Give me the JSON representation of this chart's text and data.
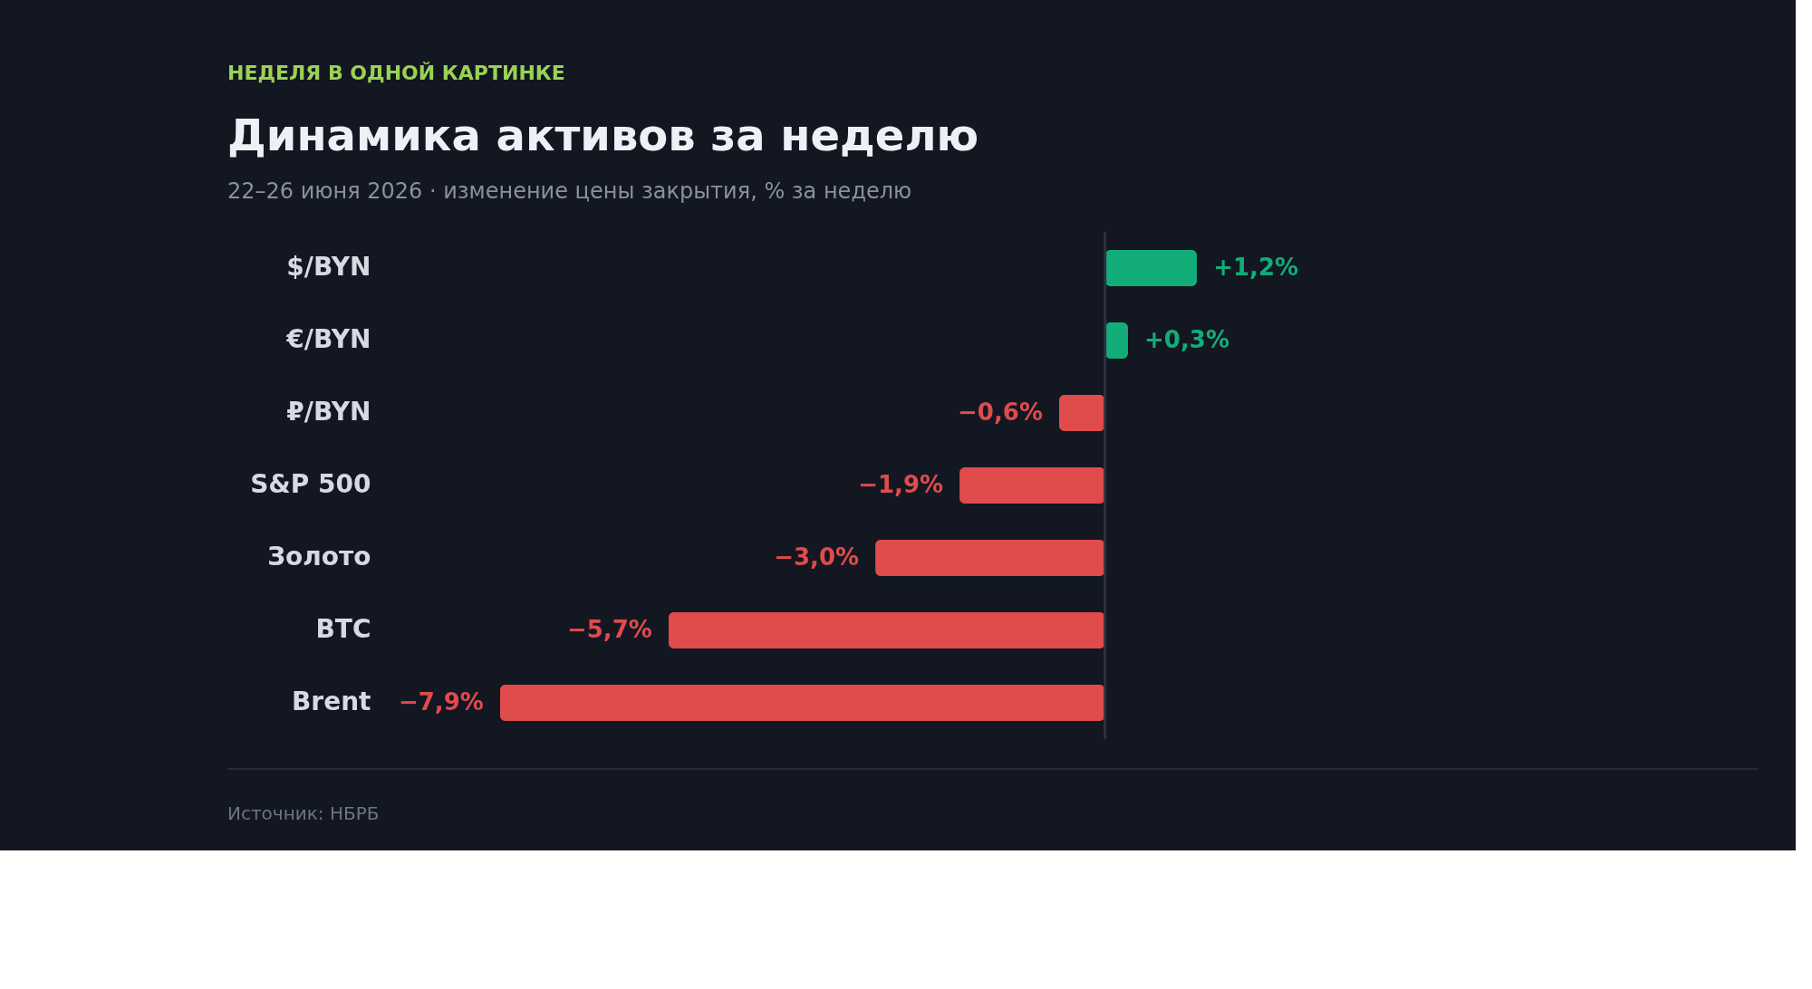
{
  "chart_data": {
    "type": "bar",
    "orientation": "horizontal",
    "title": "Динамика активов за неделю",
    "subtitle": "22–26 июня 2026 · изменение цены закрытия, % за неделю",
    "annotations": [
      "НЕДЕЛЯ В ОДНОЙ КАРТИНКЕ",
      "Источник: НБРБ"
    ],
    "categories": [
      "$/BYN",
      "€/BYN",
      "₽/BYN",
      "S&P 500",
      "Золото",
      "BTC",
      "Brent"
    ],
    "values": [
      1.2,
      0.3,
      -0.6,
      -1.9,
      -3.0,
      -5.7,
      -7.9
    ],
    "colors": [
      "#12ad79",
      "#12ad79",
      "#e04b4b",
      "#e04b4b",
      "#e04b4b",
      "#e04b4b",
      "#e04b4b"
    ],
    "value_labels": [
      "+1,2%",
      "+0,3%",
      "−0,6%",
      "−1,9%",
      "−3,0%",
      "−5,7%",
      "−7,9%"
    ],
    "ref_lines": [
      {
        "axis": "x",
        "value": 0,
        "color": "#2c3240"
      }
    ]
  }
}
